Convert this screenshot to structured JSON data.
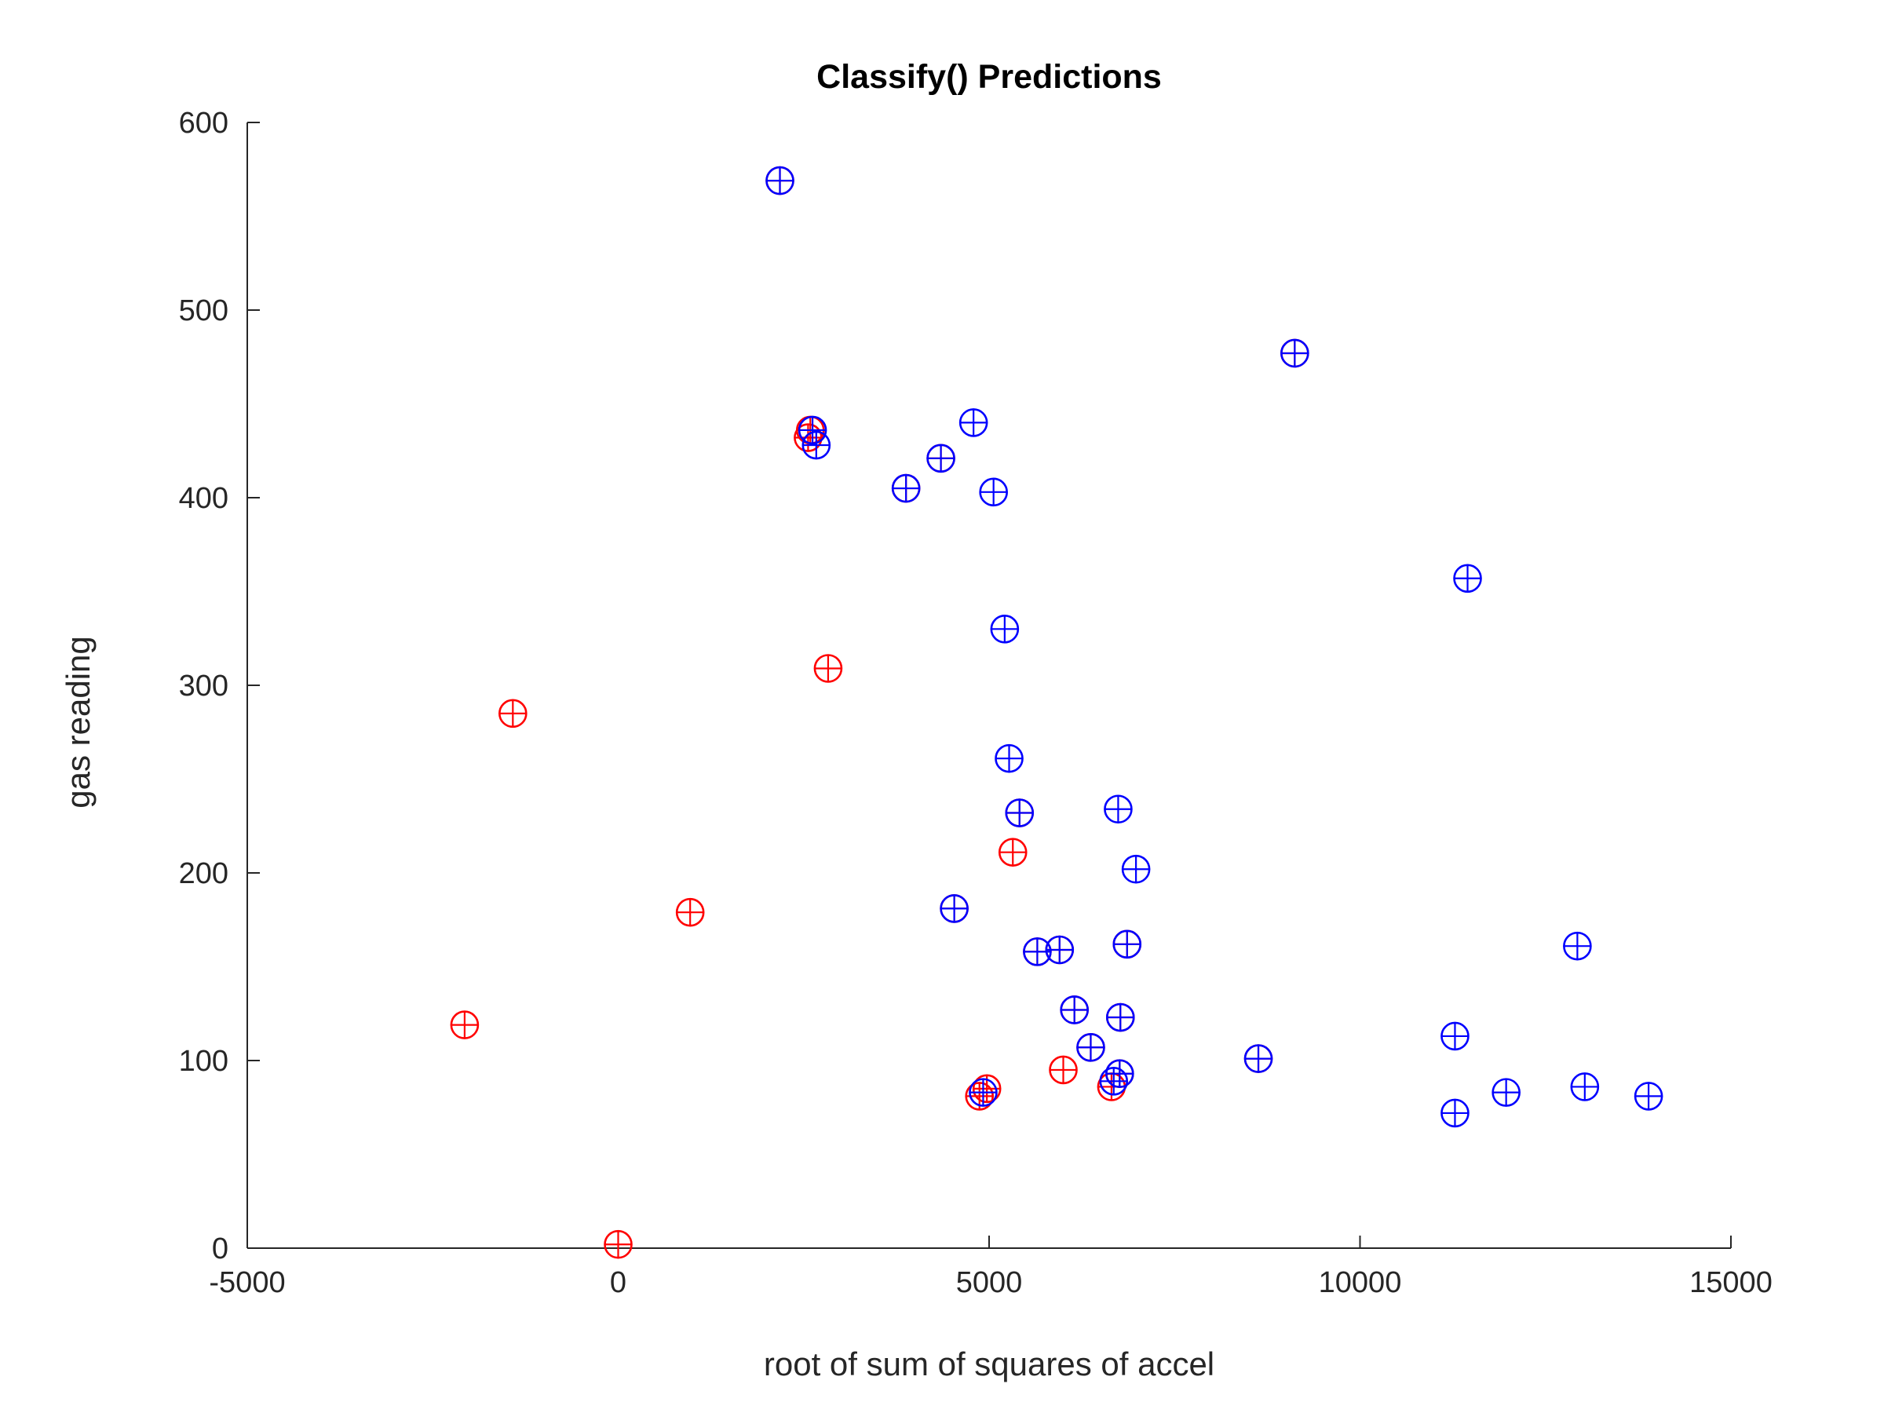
{
  "chart_data": {
    "type": "scatter",
    "title": "Classify() Predictions",
    "xlabel": "root of sum of squares of accel",
    "ylabel": "gas reading",
    "xlim": [
      -5000,
      15000
    ],
    "ylim": [
      0,
      600
    ],
    "xticks": [
      -5000,
      0,
      5000,
      10000,
      15000
    ],
    "xtick_labels": [
      "-5000",
      "0",
      "5000",
      "10000",
      "15000"
    ],
    "yticks": [
      0,
      100,
      200,
      300,
      400,
      500,
      600
    ],
    "ytick_labels": [
      "0",
      "100",
      "200",
      "300",
      "400",
      "500",
      "600"
    ],
    "grid": false,
    "marker": "circle-plus",
    "colors": {
      "red": "#ff0000",
      "blue": "#0000ff",
      "axis": "#262626"
    },
    "series": [
      {
        "name": "red",
        "color": "#ff0000",
        "points": [
          {
            "x": 2180,
            "y": 569
          },
          {
            "x": 9120,
            "y": 477
          },
          {
            "x": 2590,
            "y": 436
          },
          {
            "x": 2560,
            "y": 432
          },
          {
            "x": 4350,
            "y": 421
          },
          {
            "x": 3880,
            "y": 405
          },
          {
            "x": 2830,
            "y": 309
          },
          {
            "x": -1420,
            "y": 285
          },
          {
            "x": 5410,
            "y": 232
          },
          {
            "x": 5320,
            "y": 211
          },
          {
            "x": 4530,
            "y": 181
          },
          {
            "x": 970,
            "y": 179
          },
          {
            "x": 5650,
            "y": 158
          },
          {
            "x": 5950,
            "y": 159
          },
          {
            "x": 6860,
            "y": 162
          },
          {
            "x": 6150,
            "y": 127
          },
          {
            "x": 6770,
            "y": 123
          },
          {
            "x": -2070,
            "y": 119
          },
          {
            "x": 8630,
            "y": 101
          },
          {
            "x": 6370,
            "y": 107
          },
          {
            "x": 6000,
            "y": 95
          },
          {
            "x": 6760,
            "y": 93
          },
          {
            "x": 6650,
            "y": 86
          },
          {
            "x": 4970,
            "y": 85
          },
          {
            "x": 4870,
            "y": 81
          },
          {
            "x": 0,
            "y": 2
          }
        ]
      },
      {
        "name": "blue",
        "color": "#0000ff",
        "points": [
          {
            "x": 2180,
            "y": 569
          },
          {
            "x": 9120,
            "y": 477
          },
          {
            "x": 4790,
            "y": 440
          },
          {
            "x": 2620,
            "y": 436
          },
          {
            "x": 2670,
            "y": 428
          },
          {
            "x": 4350,
            "y": 421
          },
          {
            "x": 3880,
            "y": 405
          },
          {
            "x": 5060,
            "y": 403
          },
          {
            "x": 11450,
            "y": 357
          },
          {
            "x": 5210,
            "y": 330
          },
          {
            "x": 5270,
            "y": 261
          },
          {
            "x": 6740,
            "y": 234
          },
          {
            "x": 5410,
            "y": 232
          },
          {
            "x": 6980,
            "y": 202
          },
          {
            "x": 4530,
            "y": 181
          },
          {
            "x": 12930,
            "y": 161
          },
          {
            "x": 5650,
            "y": 158
          },
          {
            "x": 5950,
            "y": 159
          },
          {
            "x": 6860,
            "y": 162
          },
          {
            "x": 6150,
            "y": 127
          },
          {
            "x": 6770,
            "y": 123
          },
          {
            "x": 11280,
            "y": 113
          },
          {
            "x": 8630,
            "y": 101
          },
          {
            "x": 6370,
            "y": 107
          },
          {
            "x": 6760,
            "y": 93
          },
          {
            "x": 6680,
            "y": 89
          },
          {
            "x": 13030,
            "y": 86
          },
          {
            "x": 11970,
            "y": 83
          },
          {
            "x": 4920,
            "y": 83
          },
          {
            "x": 13890,
            "y": 81
          },
          {
            "x": 11280,
            "y": 72
          }
        ]
      }
    ]
  }
}
